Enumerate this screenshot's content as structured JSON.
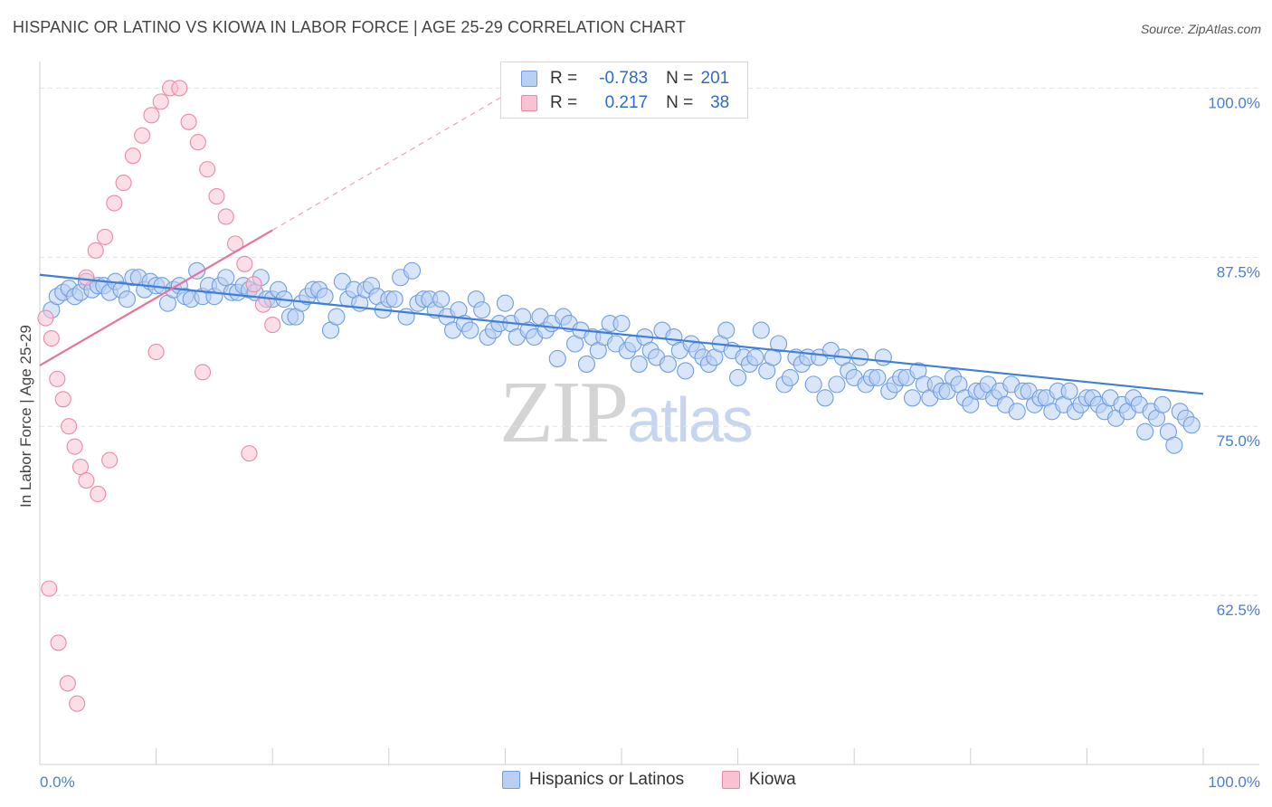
{
  "title": "HISPANIC OR LATINO VS KIOWA IN LABOR FORCE | AGE 25-29 CORRELATION CHART",
  "source": "Source: ZipAtlas.com",
  "watermark": {
    "zip": "ZIP",
    "atlas": "atlas"
  },
  "legend": {
    "r_label": "R =",
    "n_label": "N =",
    "rows": [
      {
        "r": "-0.783",
        "n": "201",
        "fill": "#b9d0f2",
        "stroke": "#6f9ee0"
      },
      {
        "r": "0.217",
        "n": "38",
        "fill": "#f9c2d2",
        "stroke": "#e98aa8"
      }
    ]
  },
  "bottom_legend": [
    {
      "label": "Hispanics or Latinos",
      "fill": "#b9d0f2",
      "stroke": "#6f9ee0"
    },
    {
      "label": "Kiowa",
      "fill": "#f9c2d2",
      "stroke": "#e98aa8"
    }
  ],
  "chart_data": {
    "type": "scatter",
    "title": "HISPANIC OR LATINO VS KIOWA IN LABOR FORCE | AGE 25-29 CORRELATION CHART",
    "xlabel": "",
    "ylabel": "In Labor Force | Age 25-29",
    "xlim": [
      0,
      100
    ],
    "ylim": [
      50,
      100
    ],
    "x_tick_labels": [
      "0.0%",
      "100.0%"
    ],
    "y_ticks": [
      62.5,
      75.0,
      87.5,
      100.0
    ],
    "y_tick_labels": [
      "62.5%",
      "75.0%",
      "87.5%",
      "100.0%"
    ],
    "grid": true,
    "colors": {
      "hispanic": "#3f7fd8",
      "hispanic_fill": "#b9d0f2",
      "kiowa": "#e8739a",
      "kiowa_fill": "#f9c2d2",
      "tick_label": "#4a7fd0"
    },
    "series": [
      {
        "name": "Hispanics or Latinos",
        "trend": {
          "x": [
            0,
            100
          ],
          "y": [
            86.2,
            77.4
          ]
        },
        "points": [
          [
            1,
            83.6
          ],
          [
            1.5,
            84.6
          ],
          [
            2,
            84.9
          ],
          [
            2.5,
            85.2
          ],
          [
            3,
            84.6
          ],
          [
            3.5,
            84.9
          ],
          [
            4,
            85.7
          ],
          [
            4.5,
            85.1
          ],
          [
            5,
            85.4
          ],
          [
            5.5,
            85.4
          ],
          [
            6,
            84.9
          ],
          [
            6.5,
            85.7
          ],
          [
            7,
            85.1
          ],
          [
            7.5,
            84.4
          ],
          [
            8,
            86.0
          ],
          [
            8.5,
            86.0
          ],
          [
            9,
            85.1
          ],
          [
            9.5,
            85.7
          ],
          [
            10,
            85.4
          ],
          [
            10.5,
            85.4
          ],
          [
            11,
            84.1
          ],
          [
            11.5,
            85.1
          ],
          [
            12,
            85.4
          ],
          [
            12.5,
            84.6
          ],
          [
            13,
            84.4
          ],
          [
            13.5,
            86.5
          ],
          [
            14,
            84.6
          ],
          [
            14.5,
            85.4
          ],
          [
            15,
            84.6
          ],
          [
            15.5,
            85.4
          ],
          [
            16,
            86.0
          ],
          [
            16.5,
            84.9
          ],
          [
            17,
            84.9
          ],
          [
            17.5,
            85.4
          ],
          [
            18,
            85.1
          ],
          [
            18.5,
            84.9
          ],
          [
            19,
            86.0
          ],
          [
            19.5,
            84.4
          ],
          [
            20,
            84.4
          ],
          [
            20.5,
            85.1
          ],
          [
            21,
            84.4
          ],
          [
            21.5,
            83.1
          ],
          [
            22,
            83.1
          ],
          [
            22.5,
            84.1
          ],
          [
            23,
            84.6
          ],
          [
            23.5,
            85.1
          ],
          [
            24,
            85.1
          ],
          [
            24.5,
            84.6
          ],
          [
            25,
            82.1
          ],
          [
            25.5,
            83.1
          ],
          [
            26,
            85.7
          ],
          [
            26.5,
            84.4
          ],
          [
            27,
            85.1
          ],
          [
            27.5,
            84.1
          ],
          [
            28,
            85.1
          ],
          [
            28.5,
            85.4
          ],
          [
            29,
            84.6
          ],
          [
            29.5,
            83.6
          ],
          [
            30,
            84.4
          ],
          [
            30.5,
            84.4
          ],
          [
            31,
            86.0
          ],
          [
            31.5,
            83.1
          ],
          [
            32,
            86.5
          ],
          [
            32.5,
            84.1
          ],
          [
            33,
            84.4
          ],
          [
            33.5,
            84.4
          ],
          [
            34,
            83.6
          ],
          [
            34.5,
            84.4
          ],
          [
            35,
            83.1
          ],
          [
            35.5,
            82.1
          ],
          [
            36,
            83.6
          ],
          [
            36.5,
            82.6
          ],
          [
            37,
            82.1
          ],
          [
            37.5,
            84.4
          ],
          [
            38,
            83.6
          ],
          [
            38.5,
            81.6
          ],
          [
            39,
            82.1
          ],
          [
            39.5,
            82.6
          ],
          [
            40,
            84.1
          ],
          [
            40.5,
            82.6
          ],
          [
            41,
            81.6
          ],
          [
            41.5,
            83.1
          ],
          [
            42,
            82.1
          ],
          [
            42.5,
            81.6
          ],
          [
            43,
            83.1
          ],
          [
            43.5,
            82.1
          ],
          [
            44,
            82.6
          ],
          [
            44.5,
            80.0
          ],
          [
            45,
            83.1
          ],
          [
            45.5,
            82.6
          ],
          [
            46,
            81.1
          ],
          [
            46.5,
            82.1
          ],
          [
            47,
            79.6
          ],
          [
            47.5,
            81.6
          ],
          [
            48,
            80.6
          ],
          [
            48.5,
            81.6
          ],
          [
            49,
            82.6
          ],
          [
            49.5,
            81.1
          ],
          [
            50,
            82.6
          ],
          [
            50.5,
            80.6
          ],
          [
            51,
            81.1
          ],
          [
            51.5,
            79.6
          ],
          [
            52,
            81.6
          ],
          [
            52.5,
            80.6
          ],
          [
            53,
            80.1
          ],
          [
            53.5,
            82.1
          ],
          [
            54,
            79.6
          ],
          [
            54.5,
            81.6
          ],
          [
            55,
            80.6
          ],
          [
            55.5,
            79.1
          ],
          [
            56,
            81.1
          ],
          [
            56.5,
            80.6
          ],
          [
            57,
            80.1
          ],
          [
            57.5,
            79.6
          ],
          [
            58,
            80.1
          ],
          [
            58.5,
            81.1
          ],
          [
            59,
            82.1
          ],
          [
            59.5,
            80.6
          ],
          [
            60,
            78.6
          ],
          [
            60.5,
            80.1
          ],
          [
            61,
            79.6
          ],
          [
            61.5,
            80.1
          ],
          [
            62,
            82.1
          ],
          [
            62.5,
            79.1
          ],
          [
            63,
            80.1
          ],
          [
            63.5,
            81.1
          ],
          [
            64,
            78.1
          ],
          [
            64.5,
            78.6
          ],
          [
            65,
            80.1
          ],
          [
            65.5,
            79.6
          ],
          [
            66,
            80.1
          ],
          [
            66.5,
            78.1
          ],
          [
            67,
            80.1
          ],
          [
            67.5,
            77.1
          ],
          [
            68,
            80.6
          ],
          [
            68.5,
            78.1
          ],
          [
            69,
            80.1
          ],
          [
            69.5,
            79.1
          ],
          [
            70,
            78.6
          ],
          [
            70.5,
            80.1
          ],
          [
            71,
            78.1
          ],
          [
            71.5,
            78.6
          ],
          [
            72,
            78.6
          ],
          [
            72.5,
            80.1
          ],
          [
            73,
            77.6
          ],
          [
            73.5,
            78.1
          ],
          [
            74,
            78.6
          ],
          [
            74.5,
            78.6
          ],
          [
            75,
            77.1
          ],
          [
            75.5,
            79.1
          ],
          [
            76,
            78.1
          ],
          [
            76.5,
            77.1
          ],
          [
            77,
            78.1
          ],
          [
            77.5,
            77.6
          ],
          [
            78,
            77.6
          ],
          [
            78.5,
            78.6
          ],
          [
            79,
            78.1
          ],
          [
            79.5,
            77.1
          ],
          [
            80,
            76.6
          ],
          [
            80.5,
            77.6
          ],
          [
            81,
            77.6
          ],
          [
            81.5,
            78.1
          ],
          [
            82,
            77.1
          ],
          [
            82.5,
            77.6
          ],
          [
            83,
            76.6
          ],
          [
            83.5,
            78.1
          ],
          [
            84,
            76.1
          ],
          [
            84.5,
            77.6
          ],
          [
            85,
            77.6
          ],
          [
            85.5,
            76.6
          ],
          [
            86,
            77.1
          ],
          [
            86.5,
            77.1
          ],
          [
            87,
            76.1
          ],
          [
            87.5,
            77.6
          ],
          [
            88,
            76.6
          ],
          [
            88.5,
            77.6
          ],
          [
            89,
            76.1
          ],
          [
            89.5,
            76.6
          ],
          [
            90,
            77.1
          ],
          [
            90.5,
            77.1
          ],
          [
            91,
            76.6
          ],
          [
            91.5,
            76.1
          ],
          [
            92,
            77.1
          ],
          [
            92.5,
            75.6
          ],
          [
            93,
            76.6
          ],
          [
            93.5,
            76.1
          ],
          [
            94,
            77.1
          ],
          [
            94.5,
            76.6
          ],
          [
            95,
            74.6
          ],
          [
            95.5,
            76.1
          ],
          [
            96,
            75.6
          ],
          [
            96.5,
            76.6
          ],
          [
            97,
            74.6
          ],
          [
            97.5,
            73.6
          ],
          [
            98,
            76.1
          ],
          [
            98.5,
            75.6
          ],
          [
            99,
            75.1
          ]
        ]
      },
      {
        "name": "Kiowa",
        "trend": {
          "x": [
            0,
            20
          ],
          "y": [
            79.5,
            89.5
          ]
        },
        "points": [
          [
            0.5,
            83.0
          ],
          [
            1,
            81.5
          ],
          [
            1.5,
            78.5
          ],
          [
            2,
            77.0
          ],
          [
            2.5,
            75.0
          ],
          [
            3,
            73.5
          ],
          [
            3.5,
            72.0
          ],
          [
            4,
            71.0
          ],
          [
            5,
            70.0
          ],
          [
            6,
            72.5
          ],
          [
            0.8,
            63.0
          ],
          [
            1.6,
            59.0
          ],
          [
            2.4,
            56.0
          ],
          [
            3.2,
            54.5
          ],
          [
            4.0,
            86.0
          ],
          [
            4.8,
            88.0
          ],
          [
            5.6,
            89.0
          ],
          [
            6.4,
            91.5
          ],
          [
            7.2,
            93.0
          ],
          [
            8.0,
            95.0
          ],
          [
            8.8,
            96.5
          ],
          [
            9.6,
            98.0
          ],
          [
            10.4,
            99.0
          ],
          [
            11.2,
            100.0
          ],
          [
            12.0,
            100.0
          ],
          [
            12.8,
            97.5
          ],
          [
            13.6,
            96.0
          ],
          [
            14.4,
            94.0
          ],
          [
            15.2,
            92.0
          ],
          [
            16.0,
            90.5
          ],
          [
            16.8,
            88.5
          ],
          [
            17.6,
            87.0
          ],
          [
            18.4,
            85.5
          ],
          [
            19.2,
            84.0
          ],
          [
            20.0,
            82.5
          ],
          [
            10.0,
            80.5
          ],
          [
            14.0,
            79.0
          ],
          [
            18.0,
            73.0
          ]
        ]
      }
    ]
  }
}
